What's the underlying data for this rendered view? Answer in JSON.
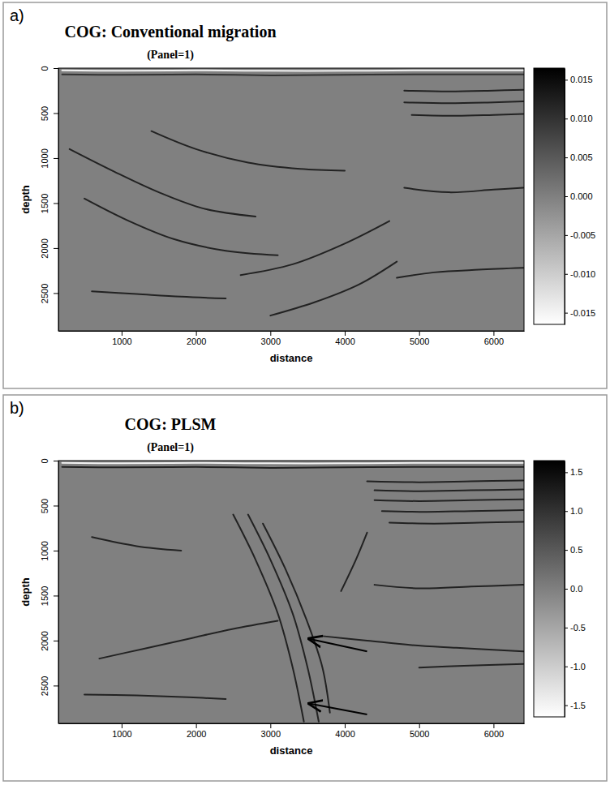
{
  "chart_data": [
    {
      "type": "line",
      "panel": "a)",
      "title": "COG: Conventional migration",
      "subtitle": "(Panel=1)",
      "x_label": "distance",
      "y_label": "depth",
      "xlim": [
        150,
        6410
      ],
      "ylim": [
        2920,
        0
      ],
      "xticks": [
        1000,
        2000,
        3000,
        4000,
        5000,
        6000
      ],
      "yticks": [
        0,
        500,
        1000,
        1500,
        2000,
        2500
      ],
      "colorbar": {
        "range": [
          -0.0165,
          0.0165
        ],
        "ticks": [
          0.015,
          {
            "value": 0.01,
            "label": "0.010"
          },
          0.005,
          {
            "value": 0,
            "label": "0.000"
          },
          -0.005,
          {
            "value": -0.01,
            "label": "-0.010"
          },
          -0.015
        ]
      },
      "series": [
        {
          "color": "#f2f2f2",
          "x": [
            200,
            1000,
            2000,
            3000,
            4000,
            5000,
            6400
          ],
          "values": [
            25,
            30,
            25,
            30,
            30,
            25,
            25
          ]
        },
        {
          "color": "#333333",
          "x": [
            200,
            1000,
            2000,
            3000,
            4000,
            5000,
            6400
          ],
          "values": [
            70,
            75,
            70,
            80,
            75,
            70,
            70
          ]
        },
        {
          "color": "#222222",
          "x": [
            4800,
            5400,
            6000,
            6400
          ],
          "values": [
            250,
            260,
            250,
            240
          ]
        },
        {
          "color": "#222222",
          "x": [
            4800,
            5400,
            6000,
            6400
          ],
          "values": [
            380,
            390,
            380,
            370
          ]
        },
        {
          "color": "#222222",
          "x": [
            4900,
            5500,
            6000,
            6400
          ],
          "values": [
            520,
            530,
            520,
            510
          ]
        },
        {
          "color": "#222222",
          "x": [
            4800,
            5400,
            6000,
            6400
          ],
          "values": [
            1330,
            1380,
            1350,
            1330
          ]
        },
        {
          "color": "#222222",
          "x": [
            4700,
            5200,
            5800,
            6400
          ],
          "values": [
            2330,
            2270,
            2240,
            2220
          ]
        },
        {
          "color": "#222222",
          "x": [
            600,
            1200,
            1800,
            2400
          ],
          "values": [
            2480,
            2510,
            2540,
            2560
          ]
        },
        {
          "color": "#222222",
          "x": [
            300,
            900,
            1500,
            2100,
            2800
          ],
          "values": [
            900,
            1150,
            1380,
            1560,
            1650
          ]
        },
        {
          "color": "#222222",
          "x": [
            500,
            1100,
            1700,
            2400,
            3100
          ],
          "values": [
            1450,
            1700,
            1900,
            2030,
            2080
          ]
        },
        {
          "color": "#222222",
          "x": [
            2600,
            3300,
            4000,
            4600
          ],
          "values": [
            2300,
            2180,
            1950,
            1700
          ]
        },
        {
          "color": "#222222",
          "x": [
            1400,
            2000,
            2700,
            3400,
            4000
          ],
          "values": [
            700,
            900,
            1050,
            1120,
            1140
          ]
        },
        {
          "color": "#222222",
          "x": [
            3000,
            3600,
            4200,
            4700
          ],
          "values": [
            2750,
            2600,
            2400,
            2150
          ]
        }
      ]
    },
    {
      "type": "line",
      "panel": "b)",
      "title": "COG: PLSM",
      "subtitle": "(Panel=1)",
      "x_label": "distance",
      "y_label": "depth",
      "xlim": [
        150,
        6410
      ],
      "ylim": [
        2920,
        0
      ],
      "xticks": [
        1000,
        2000,
        3000,
        4000,
        5000,
        6000
      ],
      "yticks": [
        0,
        500,
        1000,
        1500,
        2000,
        2500
      ],
      "colorbar": {
        "range": [
          -1.65,
          1.65
        ],
        "ticks": [
          1.5,
          {
            "value": 1,
            "label": "1.0"
          },
          0.5,
          {
            "value": 0,
            "label": "0.0"
          },
          -0.5,
          {
            "value": -1,
            "label": "-1.0"
          },
          -1.5
        ]
      },
      "series": [
        {
          "color": "#f2f2f2",
          "x": [
            200,
            1000,
            2000,
            3000,
            4000,
            5000,
            6400
          ],
          "values": [
            25,
            30,
            25,
            30,
            30,
            25,
            25
          ]
        },
        {
          "color": "#222222",
          "x": [
            200,
            1000,
            2000,
            3000,
            4000,
            5000,
            6400
          ],
          "values": [
            70,
            75,
            70,
            80,
            75,
            70,
            70
          ]
        },
        {
          "color": "#222222",
          "x": [
            4300,
            5000,
            5700,
            6400
          ],
          "values": [
            230,
            240,
            230,
            220
          ]
        },
        {
          "color": "#222222",
          "x": [
            4400,
            5000,
            5700,
            6400
          ],
          "values": [
            330,
            340,
            330,
            320
          ]
        },
        {
          "color": "#222222",
          "x": [
            4400,
            5000,
            5700,
            6400
          ],
          "values": [
            440,
            450,
            440,
            430
          ]
        },
        {
          "color": "#222222",
          "x": [
            4500,
            5100,
            5700,
            6400
          ],
          "values": [
            560,
            570,
            560,
            550
          ]
        },
        {
          "color": "#222222",
          "x": [
            4600,
            5200,
            5800,
            6400
          ],
          "values": [
            690,
            700,
            690,
            680
          ]
        },
        {
          "color": "#222222",
          "x": [
            4400,
            5000,
            5700,
            6400
          ],
          "values": [
            1380,
            1420,
            1400,
            1380
          ]
        },
        {
          "color": "#222222",
          "x": [
            700,
            1300,
            1900,
            2500,
            3100
          ],
          "values": [
            2200,
            2090,
            1980,
            1870,
            1780
          ]
        },
        {
          "color": "#222222",
          "x": [
            3700,
            4300,
            4900,
            5500,
            6400
          ],
          "values": [
            1950,
            2000,
            2050,
            2080,
            2120
          ]
        },
        {
          "color": "#222222",
          "x": [
            5000,
            5600,
            6400
          ],
          "values": [
            2300,
            2280,
            2260
          ]
        },
        {
          "color": "#222222",
          "x": [
            500,
            1200,
            1900,
            2400
          ],
          "values": [
            2600,
            2610,
            2630,
            2650
          ]
        },
        {
          "color": "#222222",
          "x": [
            2500,
            2800,
            3100,
            3300,
            3450
          ],
          "values": [
            600,
            1100,
            1700,
            2300,
            2900
          ]
        },
        {
          "color": "#222222",
          "x": [
            2700,
            3000,
            3300,
            3500,
            3650
          ],
          "values": [
            600,
            1100,
            1700,
            2300,
            2900
          ]
        },
        {
          "color": "#222222",
          "x": [
            2900,
            3200,
            3500,
            3700,
            3800
          ],
          "values": [
            700,
            1200,
            1800,
            2300,
            2800
          ]
        },
        {
          "color": "#222222",
          "x": [
            4300,
            4150,
            3950
          ],
          "values": [
            800,
            1100,
            1450
          ]
        },
        {
          "color": "#222222",
          "x": [
            600,
            1200,
            1800
          ],
          "values": [
            850,
            950,
            1000
          ]
        }
      ],
      "arrows": [
        {
          "x": [
            4300,
            3520
          ],
          "y": [
            2120,
            1980
          ]
        },
        {
          "x": [
            4300,
            3520
          ],
          "y": [
            2820,
            2700
          ]
        }
      ]
    }
  ]
}
